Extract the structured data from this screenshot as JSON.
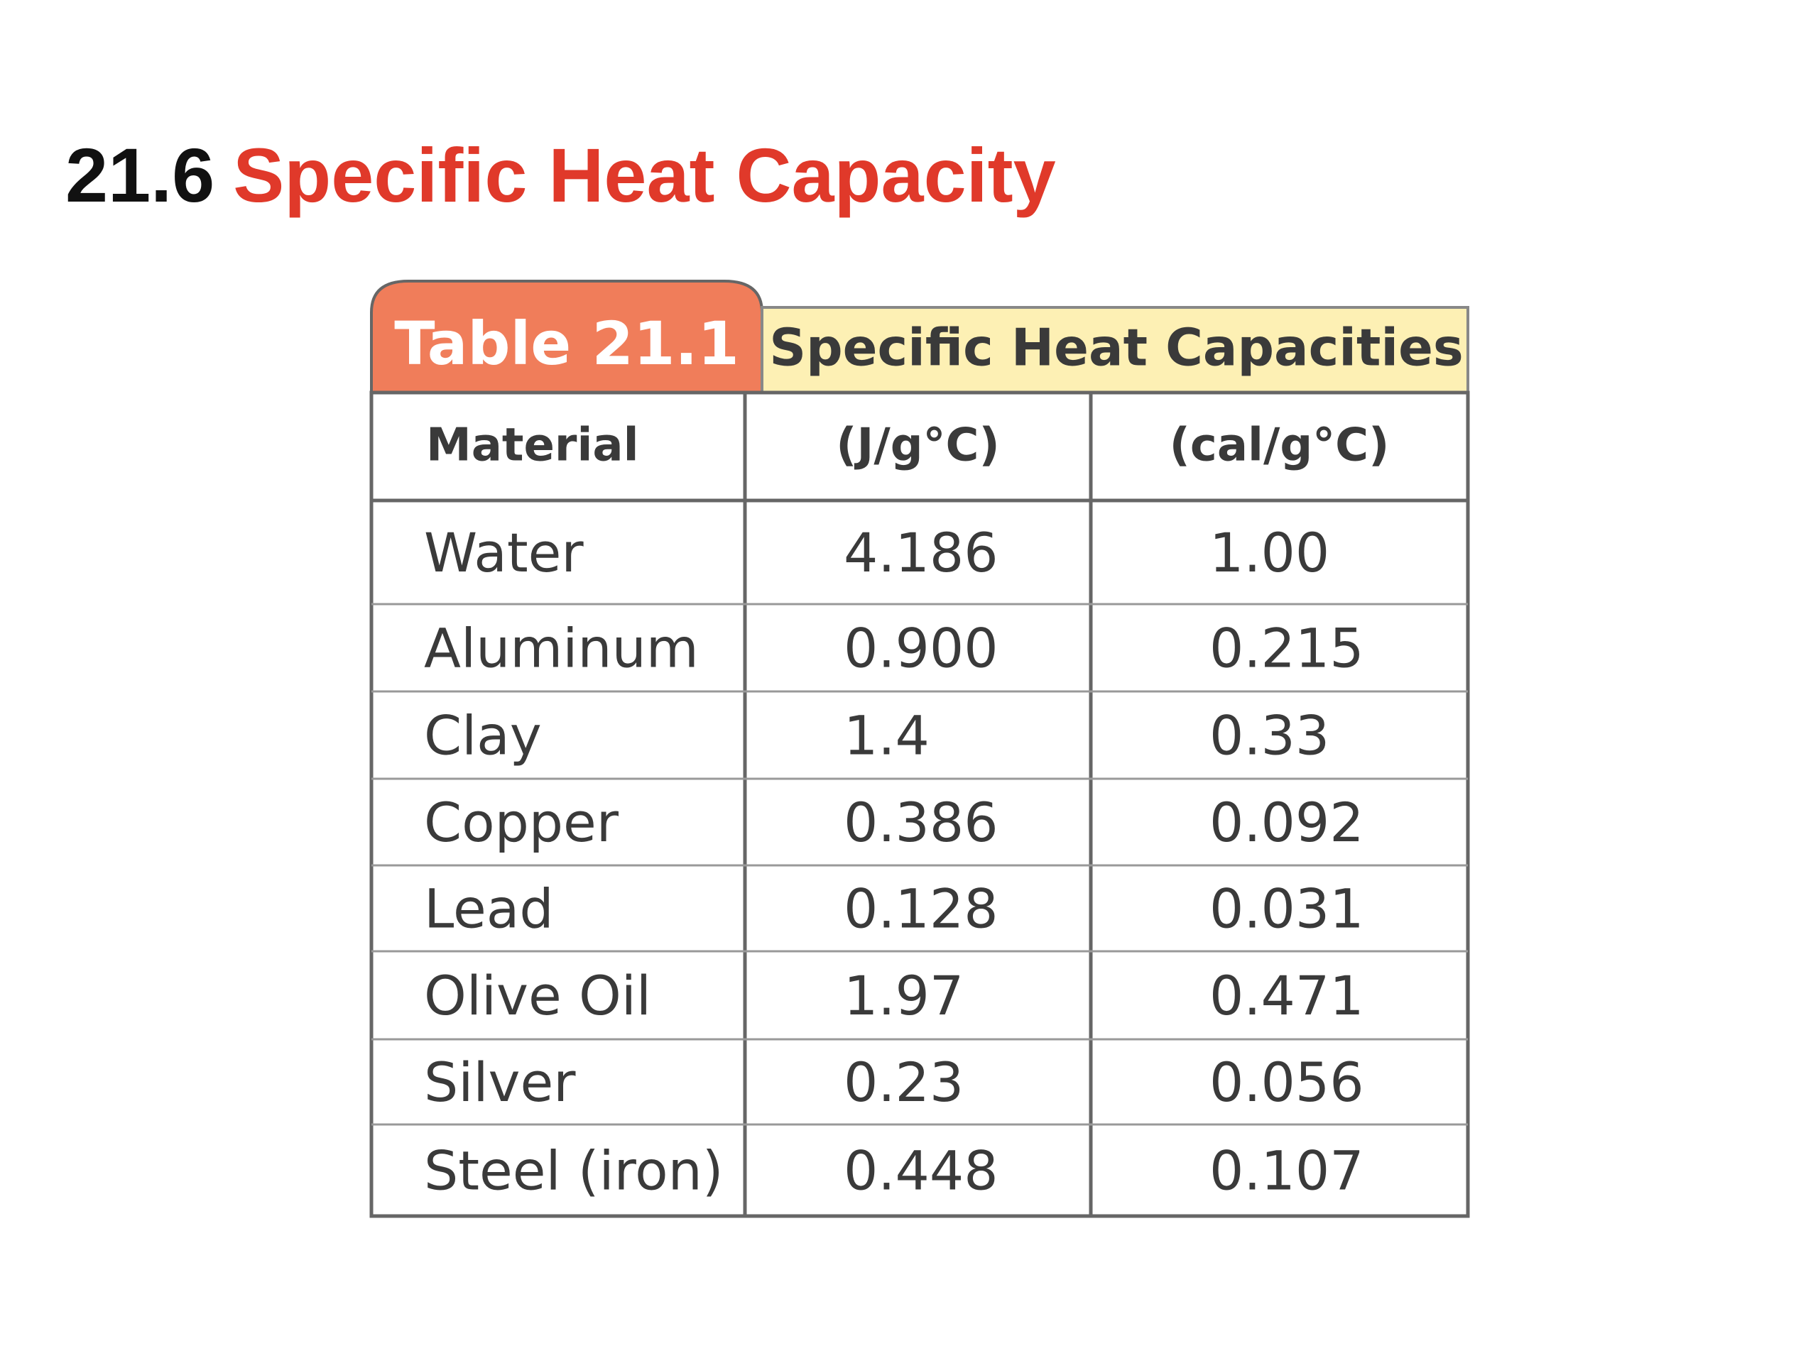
{
  "header": {
    "number": "21.6",
    "title": "Specific Heat Capacity"
  },
  "table": {
    "label": "Table 21.1",
    "caption": "Specific Heat Capacities",
    "columns": [
      "Material",
      "(J/g°C)",
      "(cal/g°C)"
    ],
    "rows": [
      [
        "Water",
        "4.186",
        "1.00"
      ],
      [
        "Aluminum",
        "0.900",
        "0.215"
      ],
      [
        "Clay",
        "1.4",
        "0.33"
      ],
      [
        "Copper",
        "0.386",
        "0.092"
      ],
      [
        "Lead",
        "0.128",
        "0.031"
      ],
      [
        "Olive Oil",
        "1.97",
        "0.471"
      ],
      [
        "Silver",
        "0.23",
        "0.056"
      ],
      [
        "Steel (iron)",
        "0.448",
        "0.107"
      ]
    ]
  }
}
